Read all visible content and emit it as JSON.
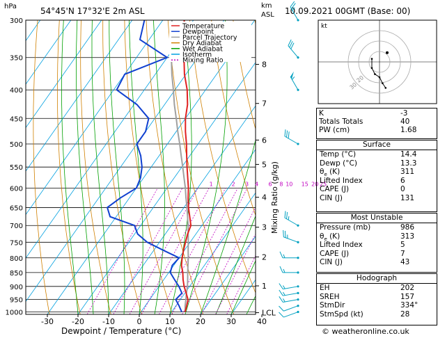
{
  "header": {
    "location": "54°45'N  17°32'E  2m  ASL",
    "datetime": "10.09.2021  00GMT  (Base: 00)",
    "hpa_label": "hPa",
    "km_label": "km",
    "asl_label": "ASL"
  },
  "colors": {
    "temperature": "#e02020",
    "dewpoint": "#1040d0",
    "parcel": "#a0a0a0",
    "dry_adiabat": "#d08000",
    "wet_adiabat": "#00a000",
    "isotherm": "#00a0e0",
    "mixing_ratio": "#c000c0",
    "wind_barb": "#00a0c0"
  },
  "legend": [
    {
      "label": "Temperature",
      "color": "#e02020",
      "dash": false
    },
    {
      "label": "Dewpoint",
      "color": "#1040d0",
      "dash": false
    },
    {
      "label": "Parcel Trajectory",
      "color": "#a0a0a0",
      "dash": false
    },
    {
      "label": "Dry Adiabat",
      "color": "#d08000",
      "dash": false
    },
    {
      "label": "Wet Adiabat",
      "color": "#00a000",
      "dash": false
    },
    {
      "label": "Isotherm",
      "color": "#00a0e0",
      "dash": false
    },
    {
      "label": "Mixing Ratio",
      "color": "#c000c0",
      "dash": true
    }
  ],
  "chart_data": {
    "type": "line",
    "title": "54°45'N  17°32'E  2m  ASL",
    "xlabel": "Dewpoint / Temperature (°C)",
    "ylabel": "hPa",
    "y2label": "Mixing Ratio (g/kg)",
    "xlim": [
      -35,
      40
    ],
    "ylim": [
      1010,
      300
    ],
    "x_ticks": [
      -30,
      -20,
      -10,
      0,
      10,
      20,
      30,
      40
    ],
    "pressure_levels": [
      300,
      350,
      400,
      450,
      500,
      550,
      600,
      650,
      700,
      750,
      800,
      850,
      900,
      950,
      1000
    ],
    "km_ticks": [
      {
        "p": 360,
        "label": "8"
      },
      {
        "p": 423,
        "label": "7"
      },
      {
        "p": 492,
        "label": "6"
      },
      {
        "p": 544,
        "label": "5"
      },
      {
        "p": 623,
        "label": "4"
      },
      {
        "p": 705,
        "label": "3"
      },
      {
        "p": 797,
        "label": "2"
      },
      {
        "p": 898,
        "label": "1"
      },
      {
        "p": 1003,
        "label": "LCL"
      }
    ],
    "mixing_ratio_labels": [
      {
        "w": "1",
        "t": -5.6
      },
      {
        "w": "2",
        "t": 1.7
      },
      {
        "w": "3",
        "t": 6.1
      },
      {
        "w": "4",
        "t": 9.3
      },
      {
        "w": "6",
        "t": 13.7
      },
      {
        "w": "8",
        "t": 17.3
      },
      {
        "w": "10",
        "t": 19.9
      },
      {
        "w": "15",
        "t": 25.0
      },
      {
        "w": "20",
        "t": 28.3
      },
      {
        "w": "25",
        "t": 31.0
      }
    ],
    "series": [
      {
        "name": "Temperature",
        "p": [
          1000,
          975,
          950,
          925,
          900,
          875,
          850,
          825,
          800,
          775,
          750,
          725,
          700,
          675,
          650,
          625,
          600,
          575,
          550,
          525,
          500,
          475,
          450,
          425,
          400,
          375,
          350,
          325,
          300
        ],
        "t": [
          14.4,
          13.5,
          12.5,
          10.4,
          8.2,
          6.3,
          4.6,
          2.5,
          1.0,
          -0.3,
          -1.5,
          -2.7,
          -3.6,
          -6.0,
          -8.5,
          -10.8,
          -13.0,
          -15.6,
          -18.3,
          -21.0,
          -23.8,
          -27.0,
          -30.0,
          -32.5,
          -36.0,
          -40.5,
          -44.5,
          -49.0,
          -53.0
        ]
      },
      {
        "name": "Dewpoint",
        "p": [
          1000,
          975,
          950,
          925,
          900,
          875,
          850,
          825,
          800,
          775,
          750,
          725,
          700,
          675,
          650,
          625,
          600,
          575,
          550,
          525,
          500,
          475,
          450,
          425,
          400,
          375,
          350,
          325,
          300
        ],
        "t": [
          13.3,
          11.0,
          8.5,
          9.0,
          6.5,
          3.5,
          0.5,
          -0.5,
          0.0,
          -7.0,
          -14.0,
          -19.0,
          -22.0,
          -32.0,
          -35.0,
          -33.0,
          -30.0,
          -31.0,
          -33.0,
          -36.0,
          -40.0,
          -40.0,
          -42.0,
          -49.0,
          -59.0,
          -60.0,
          -50.0,
          -63.0,
          -66.0
        ]
      },
      {
        "name": "Parcel Trajectory",
        "p": [
          1000,
          975,
          950,
          925,
          900,
          875,
          850,
          825,
          800,
          775,
          750,
          725,
          700,
          675,
          650,
          625,
          600,
          575,
          550,
          525,
          500,
          475,
          450,
          425,
          400,
          375,
          350,
          325,
          300
        ],
        "t": [
          14.4,
          13.0,
          11.8,
          10.5,
          9.3,
          7.8,
          6.2,
          4.6,
          3.0,
          1.2,
          -0.6,
          -2.5,
          -4.5,
          -6.7,
          -9.0,
          -11.5,
          -14.0,
          -16.8,
          -19.7,
          -22.8,
          -26.0,
          -29.5,
          -33.0,
          -36.8,
          -40.5,
          -44.6,
          -48.6,
          -53.0,
          -57.0
        ]
      }
    ]
  },
  "wind_barbs": [
    {
      "p": 1000,
      "dir": 250,
      "kt": 10
    },
    {
      "p": 975,
      "dir": 250,
      "kt": 10
    },
    {
      "p": 950,
      "dir": 260,
      "kt": 15
    },
    {
      "p": 925,
      "dir": 260,
      "kt": 15
    },
    {
      "p": 900,
      "dir": 260,
      "kt": 15
    },
    {
      "p": 850,
      "dir": 270,
      "kt": 15
    },
    {
      "p": 800,
      "dir": 270,
      "kt": 15
    },
    {
      "p": 750,
      "dir": 290,
      "kt": 25
    },
    {
      "p": 700,
      "dir": 300,
      "kt": 25
    },
    {
      "p": 500,
      "dir": 300,
      "kt": 30
    },
    {
      "p": 400,
      "dir": 330,
      "kt": 55
    },
    {
      "p": 350,
      "dir": 320,
      "kt": 30
    },
    {
      "p": 300,
      "dir": 330,
      "kt": 25
    }
  ],
  "hodograph": {
    "unit_label": "kt",
    "ring_labels": [
      "20",
      "30"
    ],
    "points": [
      [
        -5,
        2
      ],
      [
        -5,
        -4
      ],
      [
        -3,
        -8
      ],
      [
        0,
        -10
      ],
      [
        2,
        -14
      ],
      [
        4,
        -17
      ]
    ],
    "storm_motion": [
      5,
      6
    ]
  },
  "indices": [
    {
      "label": "K",
      "value": "-3"
    },
    {
      "label": "Totals Totals",
      "value": "40"
    },
    {
      "label": "PW (cm)",
      "value": "1.68"
    }
  ],
  "surface": {
    "title": "Surface",
    "rows": [
      {
        "label": "Temp (°C)",
        "value": "14.4"
      },
      {
        "label": "Dewp (°C)",
        "value": "13.3"
      },
      {
        "label": "θ",
        "sub": "e",
        "label_tail": "(K)",
        "value": "311"
      },
      {
        "label": "Lifted Index",
        "value": "6"
      },
      {
        "label": "CAPE (J)",
        "value": "0"
      },
      {
        "label": "CIN (J)",
        "value": "131"
      }
    ]
  },
  "most_unstable": {
    "title": "Most Unstable",
    "rows": [
      {
        "label": "Pressure (mb)",
        "value": "986"
      },
      {
        "label": "θ",
        "sub": "e",
        "label_tail": "(K)",
        "value": "313"
      },
      {
        "label": "Lifted Index",
        "value": "5"
      },
      {
        "label": "CAPE (J)",
        "value": "7"
      },
      {
        "label": "CIN (J)",
        "value": "43"
      }
    ]
  },
  "hodograph_stats": {
    "title": "Hodograph",
    "rows": [
      {
        "label": "EH",
        "value": "202"
      },
      {
        "label": "SREH",
        "value": "157"
      },
      {
        "label": "StmDir",
        "value": "334°"
      },
      {
        "label": "StmSpd (kt)",
        "value": "28"
      }
    ]
  },
  "footer": "© weatheronline.co.uk"
}
